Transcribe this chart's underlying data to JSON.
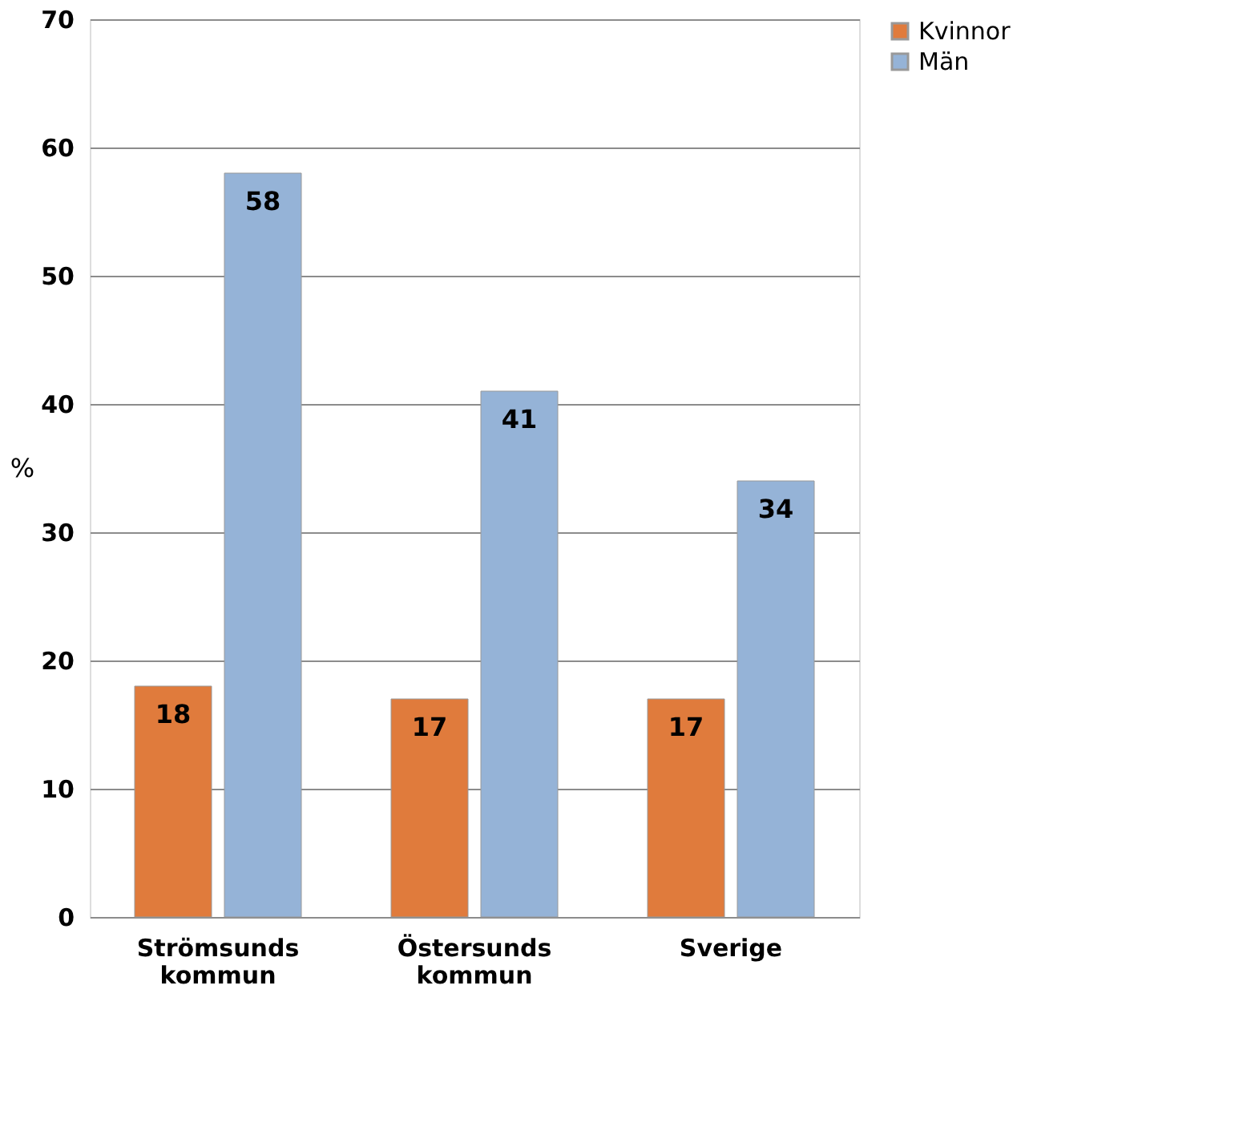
{
  "chart_data": {
    "type": "bar",
    "ylabel": "%",
    "categories": [
      "Strömsunds kommun",
      "Östersunds kommun",
      "Sverige"
    ],
    "series": [
      {
        "name": "Kvinnor",
        "color": "#e07b3c",
        "values": [
          18,
          17,
          17
        ]
      },
      {
        "name": "Män",
        "color": "#95b3d7",
        "values": [
          58,
          41,
          34
        ]
      }
    ],
    "ylim": [
      0,
      70
    ],
    "yticks": [
      0,
      10,
      20,
      30,
      40,
      50,
      60,
      70
    ],
    "grid": "y",
    "legend": "right",
    "data_labels": true
  }
}
